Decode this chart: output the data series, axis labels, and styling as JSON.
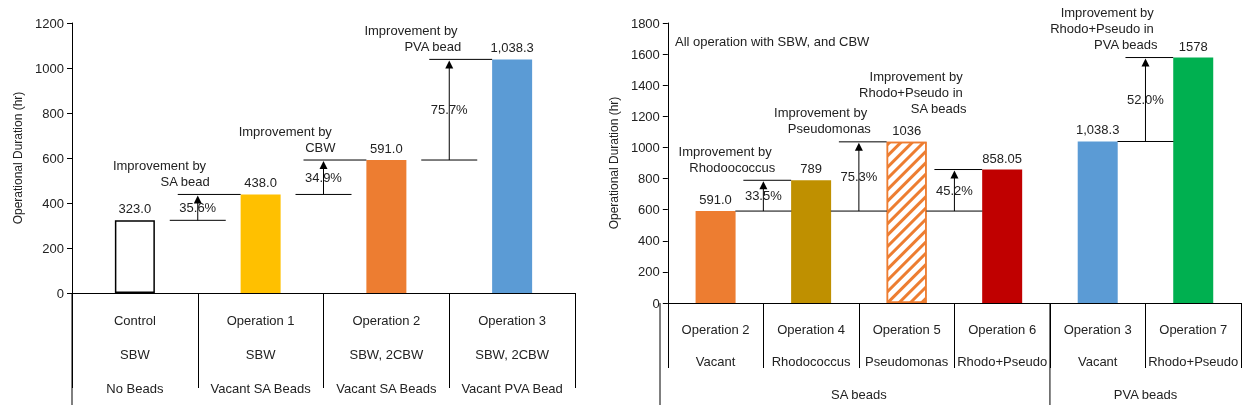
{
  "chart_data": [
    {
      "type": "bar",
      "ylabel": "Operational Duration (hr)",
      "categories": [
        "Control\nSBW\nNo Beads",
        "Operation 1\nSBW\nVacant SA Beads",
        "Operation 2\nSBW, 2CBW\nVacant SA Beads",
        "Operation 3\nSBW, 2CBW\nVacant PVA Bead"
      ],
      "values": [
        323,
        438,
        591,
        1038.3
      ],
      "colors": [
        "#ffffff",
        "#ffc000",
        "#ed7d31",
        "#5b9bd5"
      ],
      "value_labels": [
        "323.0",
        "438.0",
        "591.0",
        "1,038.3"
      ],
      "ylim": [
        0,
        1200
      ],
      "yticks": [
        0,
        200,
        400,
        600,
        800,
        1000,
        1200
      ],
      "annotations": [
        "Improvement by SA bead",
        "35.6%",
        "Improvement by CBW",
        "34.9%",
        "Improvement by PVA bead",
        "75.7%"
      ]
    },
    {
      "type": "bar",
      "ylabel": "Operational Duration (hr)",
      "categories": [
        "Operation 2\nVacant",
        "Operation 4\nRhodococcus",
        "Operation 5\nPseudomonas",
        "Operation 6\nRhodo+Pseudo",
        "Operation 3\nVacant",
        "Operation 7\nRhodo+Pseudo"
      ],
      "values": [
        591,
        789,
        1036,
        858.05,
        1038.3,
        1578
      ],
      "colors": [
        "#ed7d31",
        "#bf9000",
        "#ed7d31",
        "#c00000",
        "#5b9bd5",
        "#00b050"
      ],
      "value_labels": [
        "591.0",
        "789",
        "1036",
        "858.05",
        "1,038.3",
        "1578"
      ],
      "ylim": [
        0,
        1800
      ],
      "yticks": [
        0,
        200,
        400,
        600,
        800,
        1000,
        1200,
        1400,
        1600,
        1800
      ],
      "annotations": [
        "All operation with SBW, and CBW",
        "SA beads",
        "PVA beads",
        "Improvement by Rhodoococcus",
        "33.5%",
        "Improvement by Pseudomonas",
        "75.3%",
        "Improvement by Rhodo+Pseudo in SA beads",
        "45.2%",
        "Improvement by Rhodo+Pseudo in PVA beads",
        "52.0%"
      ]
    }
  ]
}
